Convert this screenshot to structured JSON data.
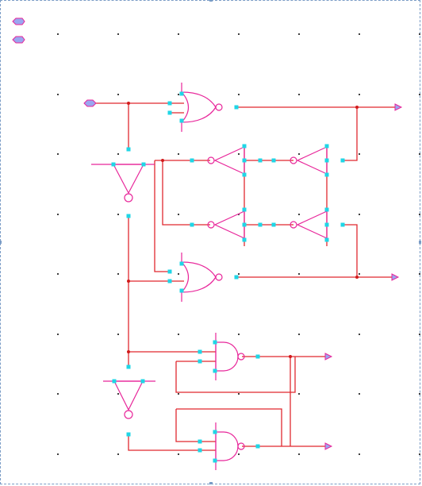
{
  "canvas": {
    "background": "#ffffff",
    "frame_color": "#7a9cc6",
    "wire_color": "#e0282f",
    "gate_color": "#e8269a",
    "pin_color": "#1fd6e6",
    "port_fill": "#9aa6f0"
  },
  "palette_icons": [
    "input-port-icon",
    "input-port-icon"
  ],
  "components": [
    {
      "kind": "input-port",
      "count": 1
    },
    {
      "kind": "output-port",
      "count": 4
    },
    {
      "kind": "or-gate",
      "count": 2
    },
    {
      "kind": "and-gate",
      "count": 2
    },
    {
      "kind": "tristate-inverter",
      "count": 4
    },
    {
      "kind": "inverter",
      "count": 2
    }
  ]
}
